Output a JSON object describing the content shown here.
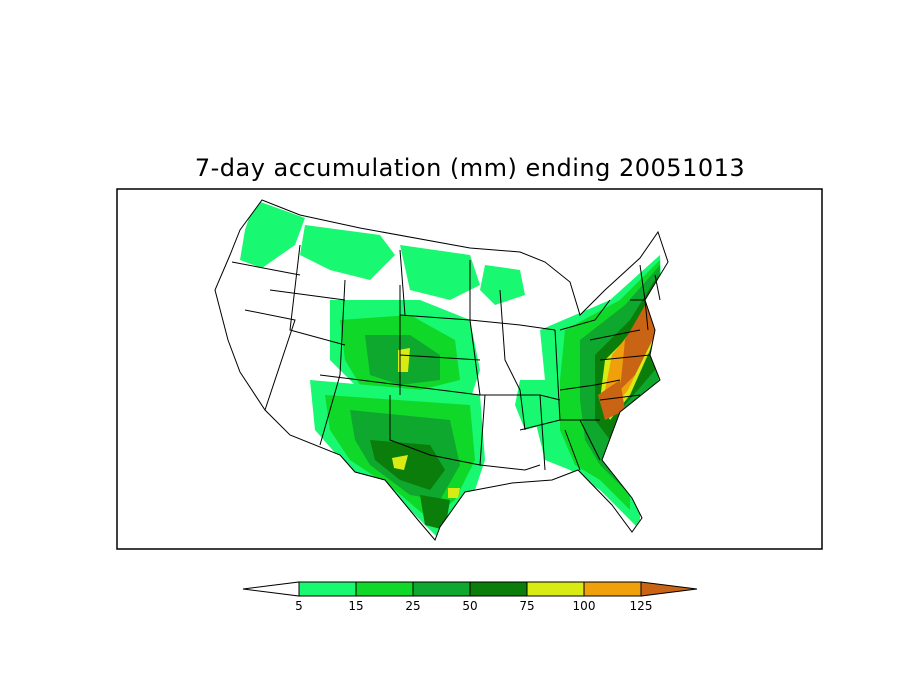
{
  "title": "7-day accumulation (mm) ending 20051013",
  "legend": {
    "labels": [
      "5",
      "15",
      "25",
      "50",
      "75",
      "100",
      "125"
    ],
    "bins": [
      {
        "from": "",
        "to": "5",
        "color": "#ffffff"
      },
      {
        "from": "5",
        "to": "15",
        "color": "#18f870"
      },
      {
        "from": "15",
        "to": "25",
        "color": "#10d828"
      },
      {
        "from": "25",
        "to": "50",
        "color": "#0ea82e"
      },
      {
        "from": "50",
        "to": "75",
        "color": "#0a7d0a"
      },
      {
        "from": "75",
        "to": "100",
        "color": "#d8ec14"
      },
      {
        "from": "100",
        "to": "125",
        "color": "#f0a00a"
      },
      {
        "from": "125",
        "to": "",
        "color": "#c86414"
      }
    ]
  },
  "colors": {
    "background": "#ffffff",
    "frame": "#000000",
    "boundaries": "#000000"
  }
}
